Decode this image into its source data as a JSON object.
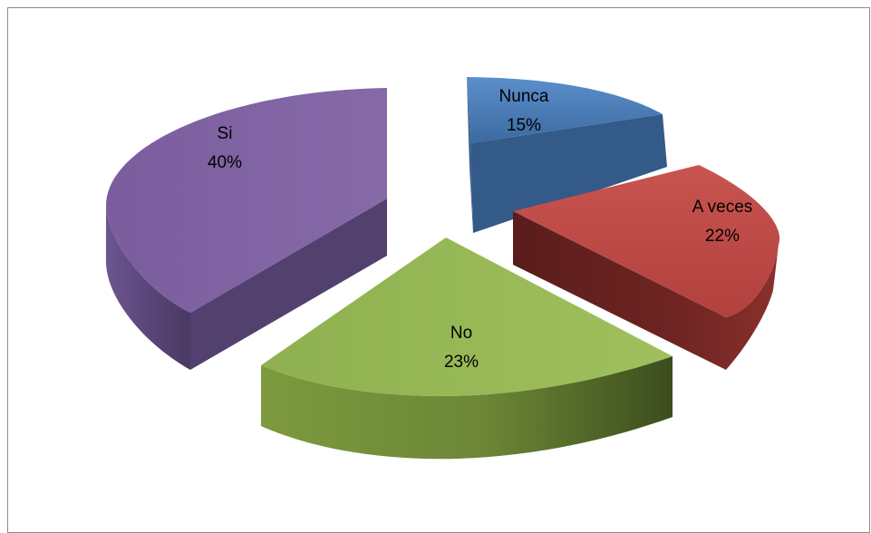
{
  "chart_data": {
    "type": "pie",
    "title": "",
    "style": "3d-exploded",
    "series": [
      {
        "name": "",
        "slices": [
          {
            "label": "Nunca",
            "value": 15,
            "value_label": "15%",
            "color": "#4f81bd"
          },
          {
            "label": "A veces",
            "value": 22,
            "value_label": "22%",
            "color": "#c0504d"
          },
          {
            "label": "No",
            "value": 23,
            "value_label": "23%",
            "color": "#9bbb59"
          },
          {
            "label": "Si",
            "value": 40,
            "value_label": "40%",
            "color": "#8064a2"
          }
        ]
      }
    ],
    "legend": "none"
  }
}
